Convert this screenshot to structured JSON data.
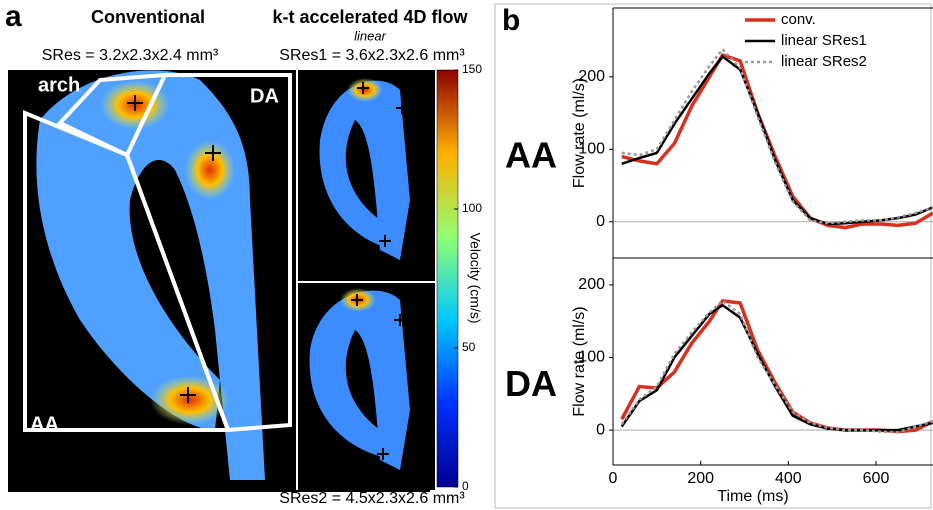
{
  "panel_a": {
    "letter": "a",
    "heading_left": "Conventional",
    "heading_right": "k-t accelerated 4D flow",
    "subheading_right": "linear",
    "sres": "SRes = 3.2x2.3x2.4 mm³",
    "sres1": "SRes1 = 3.6x2.3x2.6 mm³",
    "sres2": "SRes2 = 4.5x2.3x2.6 mm³",
    "region_arch": "arch",
    "region_da": "DA",
    "region_aa": "AA",
    "colorbar": {
      "label": "Velocity (cm/s)",
      "lim": [
        0,
        150
      ],
      "ticks": [
        0,
        50,
        100,
        150
      ]
    }
  },
  "panel_b": {
    "letter": "b"
  },
  "chart_data": [
    {
      "type": "line",
      "panel_label": "AA",
      "y_label": "Flow rate (ml/s)",
      "legend": "upper right",
      "x": [
        20,
        60,
        100,
        140,
        180,
        220,
        250,
        290,
        330,
        370,
        410,
        450,
        490,
        530,
        570,
        610,
        650,
        690,
        730
      ],
      "xlim": [
        0,
        730
      ],
      "ylim": [
        -50,
        295
      ],
      "yticks": [
        0,
        100,
        200
      ],
      "zero_line": true,
      "series": [
        {
          "name": "conv.",
          "color": "#d7301f",
          "linestyle": "solid",
          "values": [
            90,
            84,
            80,
            108,
            160,
            200,
            230,
            222,
            150,
            90,
            35,
            5,
            -5,
            -8,
            -3,
            -3,
            -5,
            -2,
            12
          ]
        },
        {
          "name": "linear SRes1",
          "color": "#000000",
          "linestyle": "solid",
          "values": [
            80,
            88,
            95,
            135,
            170,
            205,
            228,
            210,
            150,
            85,
            30,
            5,
            -3,
            -2,
            0,
            2,
            5,
            10,
            20
          ]
        },
        {
          "name": "linear SRes2",
          "color": "#999999",
          "linestyle": "dotted",
          "values": [
            95,
            92,
            100,
            140,
            180,
            215,
            238,
            212,
            145,
            82,
            28,
            2,
            -2,
            0,
            2,
            2,
            6,
            12,
            20
          ]
        }
      ]
    },
    {
      "type": "line",
      "panel_label": "DA",
      "y_label": "Flow rate (ml/s)",
      "x_label": "Time (ms)",
      "x": [
        20,
        60,
        100,
        140,
        180,
        220,
        250,
        290,
        330,
        370,
        410,
        450,
        490,
        530,
        570,
        610,
        650,
        690,
        730
      ],
      "xlim": [
        0,
        730
      ],
      "xticks": [
        0,
        200,
        400,
        600
      ],
      "ylim": [
        -48,
        237
      ],
      "yticks": [
        0,
        100,
        200
      ],
      "zero_line": true,
      "series": [
        {
          "color": "#d7301f",
          "linestyle": "solid",
          "values": [
            15,
            60,
            58,
            80,
            120,
            150,
            178,
            175,
            110,
            65,
            25,
            10,
            3,
            0,
            0,
            0,
            -2,
            0,
            12
          ]
        },
        {
          "color": "#000000",
          "linestyle": "solid",
          "values": [
            5,
            40,
            55,
            100,
            130,
            160,
            172,
            155,
            105,
            60,
            20,
            8,
            2,
            0,
            0,
            0,
            0,
            5,
            10
          ]
        },
        {
          "color": "#999999",
          "linestyle": "dotted",
          "values": [
            8,
            42,
            60,
            105,
            135,
            162,
            178,
            160,
            100,
            62,
            25,
            10,
            3,
            0,
            0,
            -2,
            -3,
            5,
            12
          ]
        }
      ]
    }
  ]
}
